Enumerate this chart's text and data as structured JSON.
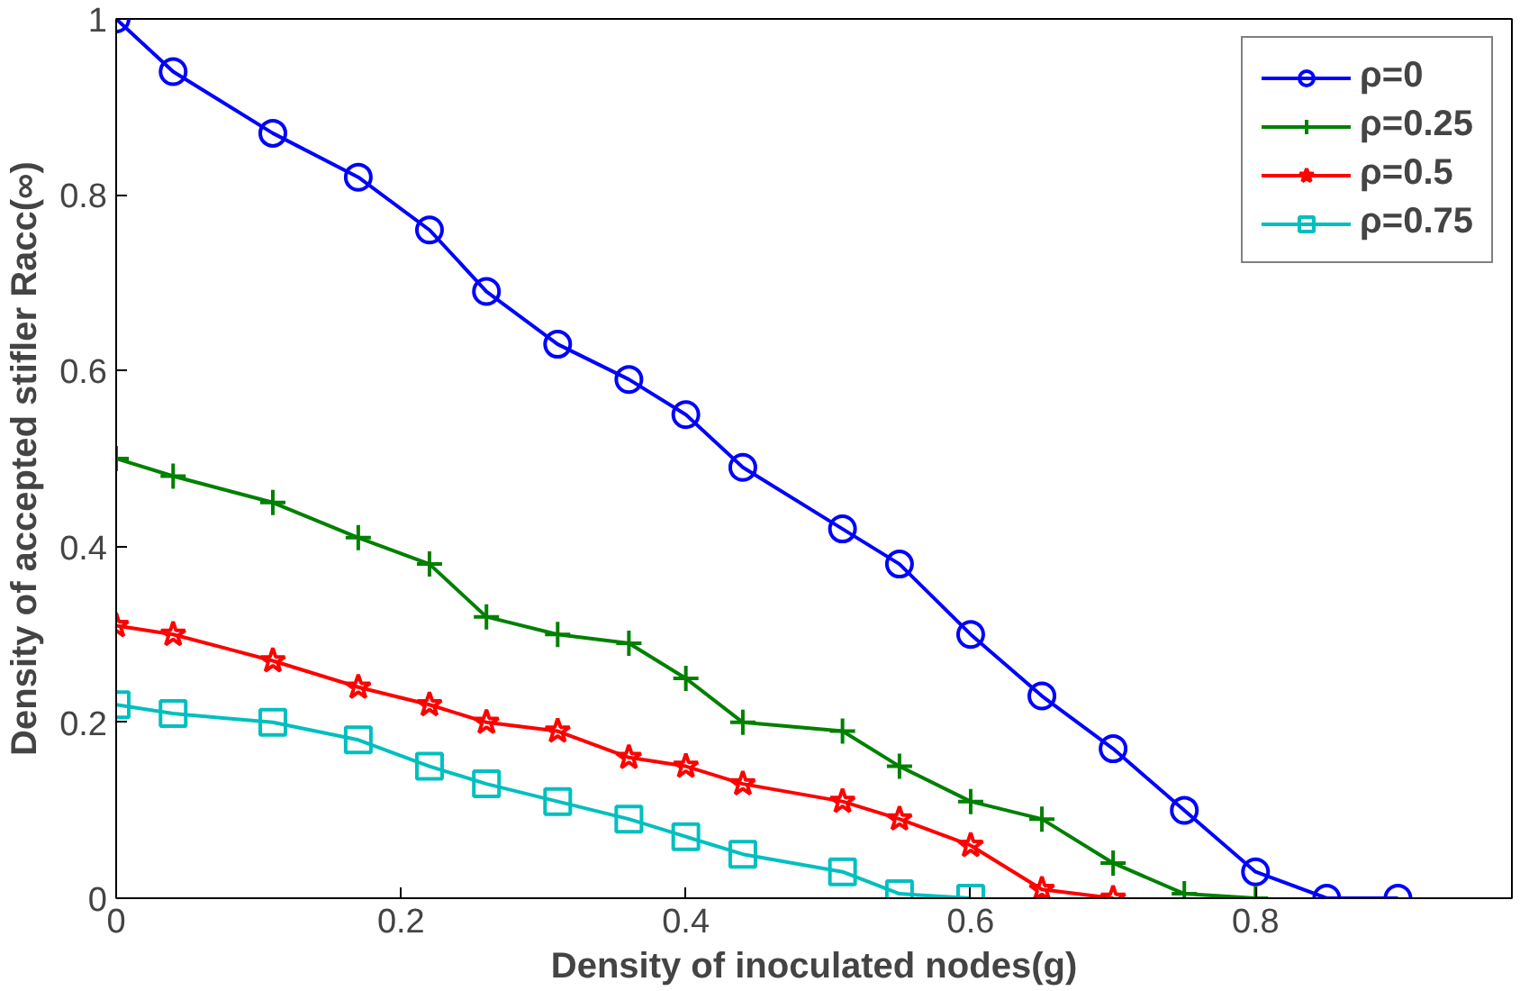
{
  "chart_data": {
    "type": "line",
    "xlabel": "Density of inoculated nodes(g)",
    "ylabel": "Density of accepted stifler Racc(∞)",
    "xlim": [
      0,
      0.98
    ],
    "ylim": [
      0,
      1
    ],
    "xticks": [
      0,
      0.2,
      0.4,
      0.6,
      0.8
    ],
    "yticks": [
      0,
      0.2,
      0.4,
      0.6,
      0.8,
      1
    ],
    "grid": false,
    "legend": "top right",
    "series": [
      {
        "name": "ρ=0",
        "color": "#0000ff",
        "marker": "circle",
        "x": [
          0,
          0.04,
          0.11,
          0.17,
          0.22,
          0.26,
          0.31,
          0.36,
          0.4,
          0.44,
          0.51,
          0.55,
          0.6,
          0.65,
          0.7,
          0.75,
          0.8,
          0.85,
          0.9
        ],
        "values": [
          1,
          0.94,
          0.87,
          0.82,
          0.76,
          0.69,
          0.63,
          0.59,
          0.55,
          0.49,
          0.42,
          0.38,
          0.3,
          0.23,
          0.17,
          0.1,
          0.03,
          0,
          0
        ]
      },
      {
        "name": "ρ=0.25",
        "color": "#008000",
        "marker": "cross",
        "x": [
          0,
          0.04,
          0.11,
          0.17,
          0.22,
          0.26,
          0.31,
          0.36,
          0.4,
          0.44,
          0.51,
          0.55,
          0.6,
          0.65,
          0.7,
          0.75,
          0.8
        ],
        "values": [
          0.5,
          0.48,
          0.45,
          0.41,
          0.38,
          0.32,
          0.3,
          0.29,
          0.25,
          0.2,
          0.19,
          0.15,
          0.11,
          0.09,
          0.04,
          0.005,
          0
        ]
      },
      {
        "name": "ρ=0.5",
        "color": "#ff0000",
        "marker": "star",
        "x": [
          0,
          0.04,
          0.11,
          0.17,
          0.22,
          0.26,
          0.31,
          0.36,
          0.4,
          0.44,
          0.51,
          0.55,
          0.6,
          0.65,
          0.7
        ],
        "values": [
          0.31,
          0.3,
          0.27,
          0.24,
          0.22,
          0.2,
          0.19,
          0.16,
          0.15,
          0.13,
          0.11,
          0.09,
          0.06,
          0.01,
          0
        ]
      },
      {
        "name": "ρ=0.75",
        "color": "#00bfbf",
        "marker": "square",
        "x": [
          0,
          0.04,
          0.11,
          0.17,
          0.22,
          0.26,
          0.31,
          0.36,
          0.4,
          0.44,
          0.51,
          0.55,
          0.6
        ],
        "values": [
          0.22,
          0.21,
          0.2,
          0.18,
          0.15,
          0.13,
          0.11,
          0.09,
          0.07,
          0.05,
          0.03,
          0.005,
          0
        ]
      }
    ]
  }
}
